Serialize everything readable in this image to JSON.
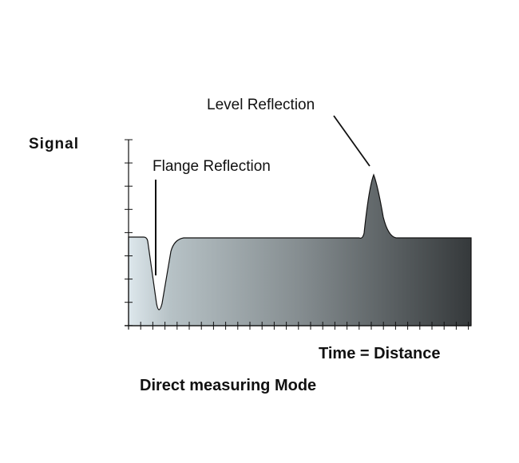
{
  "diagram": {
    "y_axis_label": "Signal",
    "x_axis_label": "Time = Distance",
    "caption": "Direct measuring Mode",
    "annotations": {
      "flange": "Flange Reflection",
      "level": "Level Reflection"
    },
    "colors": {
      "fill_left": "#dde7ec",
      "fill_right": "#35393b",
      "line": "#111111"
    }
  }
}
